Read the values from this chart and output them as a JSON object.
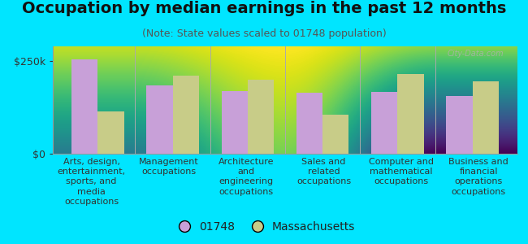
{
  "title": "Occupation by median earnings in the past 12 months",
  "subtitle": "(Note: State values scaled to 01748 population)",
  "categories": [
    "Arts, design,\nentertainment,\nsports, and\nmedia\noccupations",
    "Management\noccupations",
    "Architecture\nand\nengineering\noccupations",
    "Sales and\nrelated\noccupations",
    "Computer and\nmathematical\noccupations",
    "Business and\nfinancial\noperations\noccupations"
  ],
  "values_01748": [
    255000,
    185000,
    170000,
    165000,
    168000,
    155000
  ],
  "values_mass": [
    115000,
    210000,
    200000,
    105000,
    215000,
    195000
  ],
  "color_01748": "#c8a0d8",
  "color_mass": "#c8cc88",
  "bar_width": 0.35,
  "ylim": [
    0,
    290000
  ],
  "yticks": [
    0,
    250000
  ],
  "ytick_labels": [
    "$0",
    "$250k"
  ],
  "legend_01748": "01748",
  "legend_mass": "Massachusetts",
  "bg_top": "#f5faf0",
  "bg_bottom": "#d8eec0",
  "outer_bg": "#00e5ff",
  "watermark": "City-Data.com",
  "title_fontsize": 14,
  "subtitle_fontsize": 9,
  "tick_fontsize": 9,
  "legend_fontsize": 10,
  "cat_fontsize": 8
}
